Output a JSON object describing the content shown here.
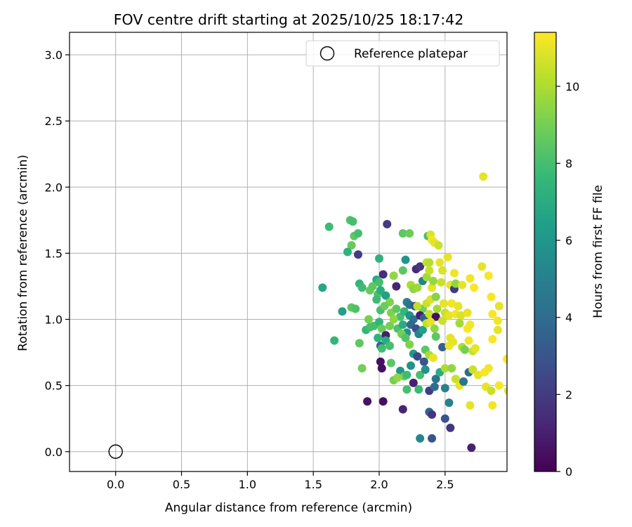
{
  "chart_data": {
    "type": "scatter",
    "title": "FOV centre drift starting at 2025/10/25 18:17:42",
    "xlabel": "Angular distance from reference (arcmin)",
    "ylabel": "Rotation from reference (arcmin)",
    "xlim": [
      -0.35,
      2.97
    ],
    "ylim": [
      -0.15,
      3.17
    ],
    "xticks": [
      "0.0",
      "0.5",
      "1.0",
      "1.5",
      "2.0",
      "2.5"
    ],
    "xtick_values": [
      0.0,
      0.5,
      1.0,
      1.5,
      2.0,
      2.5
    ],
    "yticks": [
      "0.0",
      "0.5",
      "1.0",
      "1.5",
      "2.0",
      "2.5",
      "3.0"
    ],
    "ytick_values": [
      0.0,
      0.5,
      1.0,
      1.5,
      2.0,
      2.5,
      3.0
    ],
    "grid": true,
    "legend": {
      "position": "top-right",
      "entries": [
        "Reference platepar"
      ]
    },
    "reference_point": {
      "label": "Reference platepar",
      "x": 0.0,
      "y": 0.0
    },
    "colorbar": {
      "label": "Hours from first FF file",
      "range": [
        0,
        11.4
      ],
      "ticks": [
        "0",
        "2",
        "4",
        "6",
        "8",
        "10"
      ],
      "tick_values": [
        0,
        2,
        4,
        6,
        8,
        10
      ],
      "colormap": "viridis"
    },
    "points": [
      [
        2.79,
        2.08,
        11.0
      ],
      [
        2.06,
        1.72,
        2.0
      ],
      [
        1.62,
        1.7,
        7.8
      ],
      [
        1.78,
        1.75,
        8.2
      ],
      [
        1.8,
        1.74,
        8.0
      ],
      [
        1.81,
        1.63,
        8.5
      ],
      [
        1.84,
        1.65,
        8.0
      ],
      [
        1.79,
        1.56,
        8.7
      ],
      [
        1.76,
        1.51,
        7.3
      ],
      [
        1.84,
        1.49,
        2.0
      ],
      [
        2.18,
        1.65,
        8.5
      ],
      [
        2.23,
        1.65,
        8.8
      ],
      [
        2.37,
        1.63,
        7.9
      ],
      [
        2.39,
        1.64,
        10.8
      ],
      [
        2.4,
        1.6,
        11.2
      ],
      [
        2.42,
        1.58,
        11.0
      ],
      [
        2.45,
        1.56,
        10.5
      ],
      [
        2.52,
        1.47,
        11.0
      ],
      [
        2.0,
        1.46,
        7.3
      ],
      [
        2.2,
        1.45,
        6.0
      ],
      [
        2.28,
        1.38,
        1.5
      ],
      [
        2.31,
        1.4,
        1.8
      ],
      [
        2.36,
        1.43,
        10.5
      ],
      [
        2.38,
        1.43,
        10.2
      ],
      [
        2.46,
        1.43,
        11.0
      ],
      [
        2.48,
        1.37,
        10.8
      ],
      [
        2.57,
        1.35,
        11.2
      ],
      [
        2.78,
        1.4,
        11.0
      ],
      [
        2.83,
        1.33,
        11.3
      ],
      [
        2.03,
        1.34,
        1.5
      ],
      [
        1.98,
        1.3,
        7.0
      ],
      [
        2.0,
        1.28,
        8.0
      ],
      [
        2.11,
        1.33,
        9.5
      ],
      [
        2.18,
        1.37,
        8.5
      ],
      [
        2.24,
        1.26,
        10.0
      ],
      [
        2.26,
        1.23,
        9.5
      ],
      [
        2.29,
        1.24,
        9.7
      ],
      [
        2.33,
        1.29,
        5.0
      ],
      [
        2.36,
        1.32,
        9.8
      ],
      [
        2.38,
        1.37,
        10.4
      ],
      [
        2.4,
        1.24,
        11.0
      ],
      [
        2.41,
        1.29,
        9.6
      ],
      [
        2.47,
        1.28,
        10.5
      ],
      [
        2.54,
        1.26,
        11.0
      ],
      [
        2.57,
        1.23,
        2.0
      ],
      [
        2.58,
        1.27,
        9.5
      ],
      [
        2.63,
        1.26,
        11.0
      ],
      [
        2.69,
        1.31,
        11.2
      ],
      [
        2.72,
        1.24,
        11.3
      ],
      [
        1.57,
        1.24,
        6.8
      ],
      [
        1.85,
        1.27,
        7.5
      ],
      [
        1.87,
        1.24,
        7.8
      ],
      [
        1.93,
        1.22,
        8.7
      ],
      [
        1.95,
        1.25,
        8.5
      ],
      [
        1.99,
        1.19,
        8.2
      ],
      [
        2.01,
        1.22,
        7.0
      ],
      [
        2.05,
        1.18,
        6.5
      ],
      [
        2.08,
        1.13,
        9.2
      ],
      [
        2.13,
        1.25,
        1.2
      ],
      [
        2.21,
        1.13,
        5.0
      ],
      [
        2.23,
        1.11,
        4.2
      ],
      [
        2.27,
        1.1,
        3.0
      ],
      [
        2.33,
        1.08,
        9.0
      ],
      [
        2.36,
        1.12,
        10.5
      ],
      [
        2.39,
        1.15,
        10.8
      ],
      [
        2.43,
        1.17,
        9.3
      ],
      [
        2.49,
        1.12,
        11.0
      ],
      [
        2.55,
        1.12,
        11.2
      ],
      [
        2.6,
        1.1,
        11.0
      ],
      [
        2.85,
        1.17,
        11.3
      ],
      [
        2.91,
        1.1,
        11.0
      ],
      [
        1.72,
        1.06,
        6.5
      ],
      [
        1.79,
        1.09,
        8.5
      ],
      [
        1.82,
        1.08,
        8.2
      ],
      [
        1.98,
        1.15,
        7.8
      ],
      [
        2.01,
        1.07,
        8.0
      ],
      [
        2.04,
        1.1,
        8.8
      ],
      [
        2.09,
        1.05,
        9.2
      ],
      [
        2.13,
        1.08,
        8.5
      ],
      [
        2.16,
        1.02,
        8.0
      ],
      [
        2.19,
        1.06,
        7.5
      ],
      [
        2.23,
        1.03,
        5.8
      ],
      [
        2.26,
        1.0,
        4.5
      ],
      [
        2.29,
        1.1,
        10.3
      ],
      [
        2.31,
        1.03,
        1.0
      ],
      [
        2.34,
        1.01,
        3.5
      ],
      [
        2.38,
        1.04,
        10.5
      ],
      [
        2.43,
        1.02,
        0.5
      ],
      [
        2.44,
        1.08,
        9.8
      ],
      [
        2.5,
        1.05,
        10.5
      ],
      [
        2.53,
        1.03,
        11.0
      ],
      [
        2.58,
        1.04,
        11.2
      ],
      [
        2.62,
        1.03,
        10.8
      ],
      [
        2.67,
        1.05,
        11.0
      ],
      [
        2.86,
        1.04,
        11.3
      ],
      [
        2.9,
        0.99,
        11.2
      ],
      [
        1.92,
        1.0,
        9.0
      ],
      [
        1.96,
        0.95,
        8.0
      ],
      [
        2.0,
        0.98,
        7.5
      ],
      [
        2.02,
        0.93,
        8.8
      ],
      [
        2.05,
        0.88,
        1.0
      ],
      [
        2.08,
        0.95,
        9.0
      ],
      [
        2.11,
        1.0,
        9.5
      ],
      [
        2.14,
        0.93,
        8.2
      ],
      [
        2.18,
        0.96,
        7.0
      ],
      [
        2.21,
        0.9,
        5.8
      ],
      [
        2.24,
        0.96,
        3.8
      ],
      [
        2.28,
        0.93,
        2.8
      ],
      [
        2.3,
        0.89,
        5.0
      ],
      [
        2.33,
        0.92,
        6.5
      ],
      [
        2.36,
        0.97,
        10.3
      ],
      [
        2.39,
        0.98,
        11.0
      ],
      [
        2.42,
        0.93,
        9.5
      ],
      [
        2.48,
        0.99,
        10.5
      ],
      [
        2.54,
        0.86,
        11.0
      ],
      [
        2.61,
        0.97,
        9.8
      ],
      [
        2.67,
        0.93,
        11.3
      ],
      [
        2.69,
        0.96,
        11.2
      ],
      [
        2.9,
        0.92,
        11.0
      ],
      [
        1.66,
        0.84,
        7.5
      ],
      [
        1.85,
        0.82,
        8.5
      ],
      [
        1.9,
        0.92,
        7.5
      ],
      [
        1.93,
        0.94,
        8.0
      ],
      [
        1.99,
        0.86,
        7.3
      ],
      [
        2.01,
        0.8,
        3.8
      ],
      [
        2.02,
        0.78,
        7.9
      ],
      [
        2.05,
        0.84,
        7.0
      ],
      [
        2.08,
        0.8,
        8.0
      ],
      [
        2.17,
        0.89,
        9.0
      ],
      [
        2.2,
        0.86,
        8.3
      ],
      [
        2.23,
        0.81,
        9.2
      ],
      [
        2.26,
        0.74,
        6.0
      ],
      [
        2.29,
        0.72,
        2.5
      ],
      [
        2.34,
        0.68,
        3.0
      ],
      [
        2.35,
        0.77,
        8.5
      ],
      [
        2.38,
        0.73,
        10.0
      ],
      [
        2.41,
        0.71,
        11.0
      ],
      [
        2.43,
        0.87,
        8.5
      ],
      [
        2.48,
        0.79,
        3.5
      ],
      [
        2.53,
        0.8,
        11.2
      ],
      [
        2.56,
        0.83,
        11.0
      ],
      [
        2.63,
        0.79,
        10.0
      ],
      [
        2.65,
        0.77,
        9.0
      ],
      [
        2.68,
        0.84,
        11.2
      ],
      [
        2.71,
        0.76,
        10.5
      ],
      [
        2.73,
        0.78,
        11.0
      ],
      [
        2.86,
        0.85,
        11.3
      ],
      [
        1.87,
        0.63,
        9.0
      ],
      [
        2.01,
        0.68,
        0.5
      ],
      [
        2.02,
        0.63,
        0.5
      ],
      [
        2.09,
        0.67,
        8.5
      ],
      [
        2.16,
        0.61,
        6.0
      ],
      [
        2.19,
        0.57,
        8.8
      ],
      [
        2.21,
        0.58,
        7.8
      ],
      [
        2.24,
        0.65,
        5.8
      ],
      [
        2.26,
        0.52,
        1.0
      ],
      [
        2.31,
        0.58,
        8.0
      ],
      [
        2.35,
        0.62,
        5.8
      ],
      [
        2.38,
        0.46,
        2.0
      ],
      [
        2.42,
        0.49,
        4.0
      ],
      [
        2.43,
        0.55,
        4.5
      ],
      [
        2.46,
        0.6,
        7.0
      ],
      [
        2.5,
        0.63,
        10.0
      ],
      [
        2.5,
        0.48,
        5.0
      ],
      [
        2.55,
        0.63,
        9.5
      ],
      [
        2.58,
        0.55,
        10.5
      ],
      [
        2.61,
        0.5,
        11.0
      ],
      [
        2.64,
        0.53,
        4.5
      ],
      [
        2.68,
        0.6,
        4.0
      ],
      [
        2.71,
        0.62,
        10.5
      ],
      [
        2.75,
        0.58,
        11.0
      ],
      [
        2.8,
        0.6,
        11.3
      ],
      [
        2.83,
        0.63,
        11.2
      ],
      [
        2.81,
        0.49,
        11.0
      ],
      [
        2.85,
        0.46,
        10.5
      ],
      [
        2.91,
        0.5,
        11.3
      ],
      [
        2.97,
        0.7,
        11.4
      ],
      [
        2.98,
        0.46,
        11.0
      ],
      [
        2.11,
        0.54,
        9.0
      ],
      [
        2.14,
        0.56,
        9.5
      ],
      [
        2.21,
        0.47,
        8.0
      ],
      [
        2.3,
        0.47,
        7.7
      ],
      [
        1.91,
        0.38,
        0.6
      ],
      [
        2.03,
        0.38,
        0.5
      ],
      [
        2.18,
        0.32,
        1.2
      ],
      [
        2.38,
        0.3,
        3.8
      ],
      [
        2.4,
        0.28,
        1.8
      ],
      [
        2.53,
        0.37,
        5.0
      ],
      [
        2.5,
        0.25,
        3.0
      ],
      [
        2.54,
        0.18,
        1.8
      ],
      [
        2.69,
        0.35,
        11.0
      ],
      [
        2.86,
        0.35,
        11.2
      ],
      [
        2.31,
        0.1,
        5.3
      ],
      [
        2.4,
        0.1,
        3.0
      ],
      [
        2.7,
        0.03,
        1.0
      ]
    ]
  }
}
